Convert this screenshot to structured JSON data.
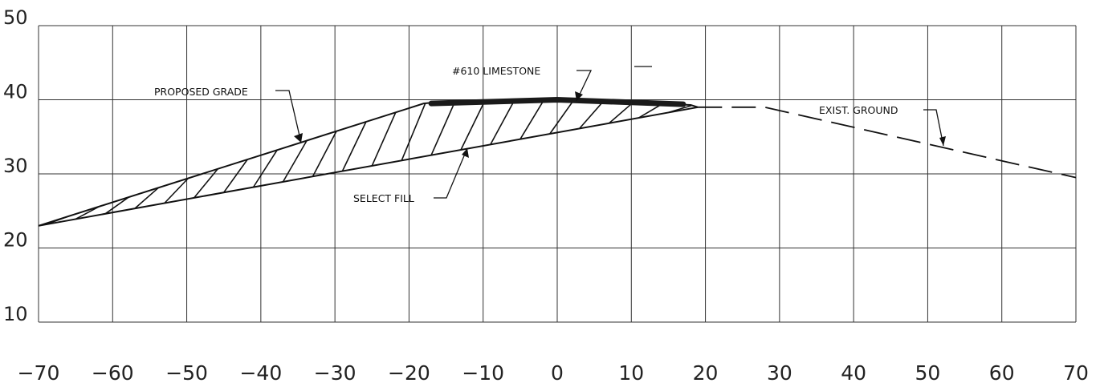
{
  "chart_data": {
    "type": "cross-section",
    "x_ticks": [
      "-70",
      "-60",
      "-50",
      "-40",
      "-30",
      "-20",
      "-10",
      "0",
      "10",
      "20",
      "30",
      "40",
      "50",
      "60",
      "70"
    ],
    "y_ticks": [
      "10",
      "20",
      "30",
      "40",
      "50"
    ],
    "xlim": [
      -70,
      70
    ],
    "ylim": [
      10,
      50
    ],
    "grid": true,
    "proposed_grade": [
      [
        -70,
        23
      ],
      [
        -18,
        39.5
      ],
      [
        -16,
        39.7
      ],
      [
        0,
        40
      ],
      [
        18,
        39.3
      ],
      [
        19,
        39
      ]
    ],
    "select_fill_bottom": [
      [
        -70,
        23
      ],
      [
        19,
        39
      ]
    ],
    "limestone_layer": [
      [
        -17,
        39.5
      ],
      [
        0,
        40
      ],
      [
        17,
        39.4
      ]
    ],
    "existing_ground": [
      [
        19,
        39
      ],
      [
        28,
        39
      ],
      [
        70,
        29.5
      ]
    ],
    "labels": {
      "proposed_grade": "PROPOSED GRADE",
      "limestone": "#610 LIMESTONE",
      "select_fill": "SELECT FILL",
      "exist_ground": "EXIST. GROUND"
    }
  }
}
